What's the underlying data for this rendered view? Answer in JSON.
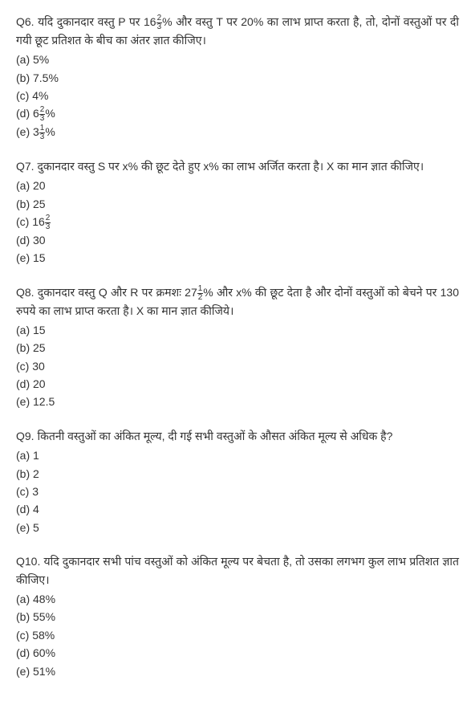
{
  "questions": [
    {
      "id": "q6",
      "label": "Q6.",
      "text_parts": [
        "यदि दुकानदार वस्तु P पर 16",
        "% और वस्तु T पर 20% का लाभ प्राप्त करता  है, तो, दोनों वस्तुओं पर दी गयी छूट प्रतिशत के बीच का अंतर ज्ञात कीजिए।"
      ],
      "frac_in_text": {
        "n": "2",
        "d": "3"
      },
      "options": [
        {
          "label": "(a)",
          "text": "5%"
        },
        {
          "label": "(b)",
          "text": "7.5%"
        },
        {
          "label": "(c)",
          "text": "4%"
        },
        {
          "label": "(d)",
          "prefix": "6",
          "frac": {
            "n": "2",
            "d": "3"
          },
          "suffix": "%"
        },
        {
          "label": "(e)",
          "prefix": "3",
          "frac": {
            "n": "1",
            "d": "3"
          },
          "suffix": "%"
        }
      ]
    },
    {
      "id": "q7",
      "label": "Q7.",
      "text_parts": [
        "दुकानदार वस्तु S पर x% की छूट देते हुए x% का लाभ अर्जित करता है। X का मान ज्ञात कीजिए।"
      ],
      "options": [
        {
          "label": "(a)",
          "text": "20"
        },
        {
          "label": "(b)",
          "text": "25"
        },
        {
          "label": "(c)",
          "prefix": "16",
          "frac": {
            "n": "2",
            "d": "3"
          },
          "suffix": ""
        },
        {
          "label": "(d)",
          "text": "30"
        },
        {
          "label": "(e)",
          "text": "15"
        }
      ]
    },
    {
      "id": "q8",
      "label": "Q8.",
      "text_parts": [
        "दुकानदार वस्तु Q और R पर क्रमशः 27",
        "% और x% की छूट देता है और दोनों वस्तुओं को बेचने पर 130 रुपये का लाभ प्राप्त करता  है।  X का मान ज्ञात कीजिये।"
      ],
      "frac_in_text": {
        "n": "1",
        "d": "2"
      },
      "options": [
        {
          "label": "(a)",
          "text": "15"
        },
        {
          "label": "(b)",
          "text": "25"
        },
        {
          "label": "(c)",
          "text": "30"
        },
        {
          "label": "(d)",
          "text": "20"
        },
        {
          "label": "(e)",
          "text": "12.5"
        }
      ]
    },
    {
      "id": "q9",
      "label": "Q9.",
      "text_parts": [
        "कितनी वस्तुओं का अंकित मूल्य, दी गई सभी वस्तुओं के औसत अंकित मूल्य से अधिक है?"
      ],
      "options": [
        {
          "label": "(a)",
          "text": "1"
        },
        {
          "label": "(b)",
          "text": "2"
        },
        {
          "label": "(c)",
          "text": "3"
        },
        {
          "label": "(d)",
          "text": "4"
        },
        {
          "label": "(e)",
          "text": "5"
        }
      ]
    },
    {
      "id": "q10",
      "label": "Q10.",
      "text_parts": [
        "यदि दुकानदार सभी पांच वस्तुओं को अंकित मूल्य पर बेचता है, तो उसका लगभग कुल लाभ प्रतिशत ज्ञात कीजिए।"
      ],
      "options": [
        {
          "label": "(a)",
          "text": "48%"
        },
        {
          "label": "(b)",
          "text": "55%"
        },
        {
          "label": "(c)",
          "text": "58%"
        },
        {
          "label": "(d)",
          "text": "60%"
        },
        {
          "label": "(e)",
          "text": "51%"
        }
      ]
    }
  ]
}
